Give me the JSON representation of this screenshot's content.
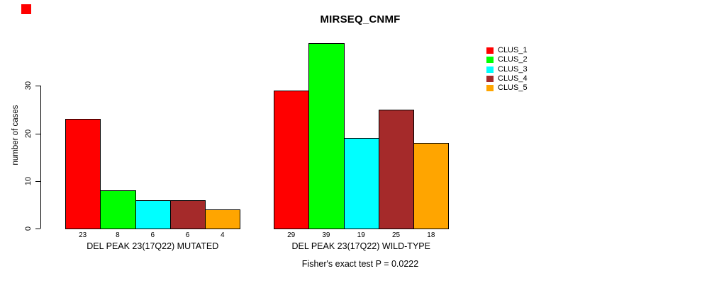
{
  "figure": {
    "significance_marker": {
      "icon": "red-square",
      "color": "#ff0000"
    }
  },
  "chart_data": {
    "type": "bar",
    "title": "MIRSEQ_CNMF",
    "ylabel": "number of cases",
    "xlabel": "",
    "categories": [
      "DEL PEAK 23(17Q22) MUTATED",
      "DEL PEAK 23(17Q22) WILD-TYPE"
    ],
    "series": [
      {
        "name": "CLUS_1",
        "color": "#ff0000",
        "values": [
          23,
          29
        ]
      },
      {
        "name": "CLUS_2",
        "color": "#00ff00",
        "values": [
          8,
          39
        ]
      },
      {
        "name": "CLUS_3",
        "color": "#00ffff",
        "values": [
          6,
          19
        ]
      },
      {
        "name": "CLUS_4",
        "color": "#a52a2a",
        "values": [
          6,
          25
        ]
      },
      {
        "name": "CLUS_5",
        "color": "#ffa500",
        "values": [
          4,
          18
        ]
      }
    ],
    "yticks": [
      0,
      10,
      20,
      30
    ],
    "ylim": [
      0,
      39
    ],
    "grid": false,
    "bar_value_labels_shown": true,
    "legend_position": "topright",
    "annotation": "Fisher's exact test P = 0.0222"
  }
}
